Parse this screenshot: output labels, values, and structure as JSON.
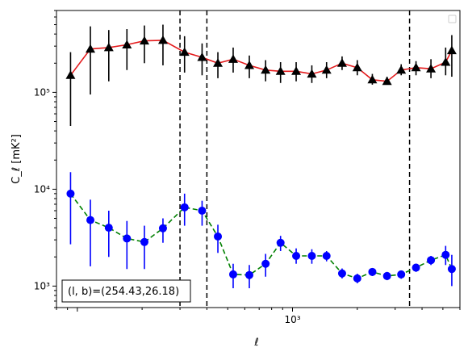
{
  "chart_data": {
    "type": "scatter",
    "title": "",
    "xlabel": "ℓ",
    "ylabel": "C_ℓ [mK²]",
    "xscale": "log",
    "yscale": "log",
    "xlim": [
      80,
      6000
    ],
    "ylim": [
      600,
      700000
    ],
    "x_tick_labels": [
      {
        "value": 1000,
        "label": "10³"
      }
    ],
    "y_tick_labels": [
      {
        "value": 1000,
        "label": "10³"
      },
      {
        "value": 10000,
        "label": "10⁴"
      },
      {
        "value": 100000,
        "label": "10⁵"
      }
    ],
    "legend": "upper right, empty",
    "vertical_lines_x": [
      300,
      400,
      3500
    ],
    "annotation": "(l, b)=(254.43,26.18)",
    "series": [
      {
        "marker": "triangle",
        "marker_color": "#000000",
        "line_color": "#e41a1c",
        "line_style": "solid",
        "errorbar_color": "#000000",
        "points": [
          {
            "x": 93,
            "y": 150000,
            "lo": 45000,
            "hi": 260000
          },
          {
            "x": 115,
            "y": 280000,
            "lo": 95000,
            "hi": 480000
          },
          {
            "x": 140,
            "y": 290000,
            "lo": 130000,
            "hi": 440000
          },
          {
            "x": 170,
            "y": 310000,
            "lo": 170000,
            "hi": 450000
          },
          {
            "x": 205,
            "y": 340000,
            "lo": 200000,
            "hi": 490000
          },
          {
            "x": 250,
            "y": 345000,
            "lo": 190000,
            "hi": 500000
          },
          {
            "x": 315,
            "y": 260000,
            "lo": 160000,
            "hi": 380000
          },
          {
            "x": 380,
            "y": 230000,
            "lo": 150000,
            "hi": 320000
          },
          {
            "x": 450,
            "y": 200000,
            "lo": 140000,
            "hi": 260000
          },
          {
            "x": 530,
            "y": 220000,
            "lo": 160000,
            "hi": 290000
          },
          {
            "x": 630,
            "y": 190000,
            "lo": 140000,
            "hi": 240000
          },
          {
            "x": 750,
            "y": 170000,
            "lo": 130000,
            "hi": 215000
          },
          {
            "x": 880,
            "y": 165000,
            "lo": 125000,
            "hi": 205000
          },
          {
            "x": 1040,
            "y": 165000,
            "lo": 130000,
            "hi": 205000
          },
          {
            "x": 1230,
            "y": 155000,
            "lo": 125000,
            "hi": 190000
          },
          {
            "x": 1440,
            "y": 170000,
            "lo": 140000,
            "hi": 205000
          },
          {
            "x": 1700,
            "y": 200000,
            "lo": 170000,
            "hi": 235000
          },
          {
            "x": 2000,
            "y": 180000,
            "lo": 150000,
            "hi": 215000
          },
          {
            "x": 2350,
            "y": 135000,
            "lo": 120000,
            "hi": 155000
          },
          {
            "x": 2750,
            "y": 130000,
            "lo": 120000,
            "hi": 145000
          },
          {
            "x": 3200,
            "y": 170000,
            "lo": 150000,
            "hi": 195000
          },
          {
            "x": 3750,
            "y": 180000,
            "lo": 150000,
            "hi": 210000
          },
          {
            "x": 4400,
            "y": 175000,
            "lo": 140000,
            "hi": 220000
          },
          {
            "x": 5150,
            "y": 205000,
            "lo": 150000,
            "hi": 290000
          },
          {
            "x": 5500,
            "y": 270000,
            "lo": 145000,
            "hi": 390000
          }
        ]
      },
      {
        "marker": "circle",
        "marker_color": "#0000ff",
        "line_color": "#008000",
        "line_style": "dashed",
        "errorbar_color": "#0000ff",
        "points": [
          {
            "x": 93,
            "y": 9000,
            "lo": 2700,
            "hi": 15000
          },
          {
            "x": 115,
            "y": 4800,
            "lo": 1600,
            "hi": 7800
          },
          {
            "x": 140,
            "y": 4000,
            "lo": 2000,
            "hi": 6000
          },
          {
            "x": 170,
            "y": 3100,
            "lo": 1500,
            "hi": 4700
          },
          {
            "x": 205,
            "y": 2850,
            "lo": 1500,
            "hi": 4200
          },
          {
            "x": 250,
            "y": 3950,
            "lo": 2800,
            "hi": 5000
          },
          {
            "x": 315,
            "y": 6500,
            "lo": 4200,
            "hi": 9000
          },
          {
            "x": 380,
            "y": 6000,
            "lo": 4200,
            "hi": 7600
          },
          {
            "x": 450,
            "y": 3250,
            "lo": 2200,
            "hi": 4300
          },
          {
            "x": 530,
            "y": 1320,
            "lo": 950,
            "hi": 1700
          },
          {
            "x": 630,
            "y": 1300,
            "lo": 950,
            "hi": 1650
          },
          {
            "x": 750,
            "y": 1700,
            "lo": 1250,
            "hi": 2150
          },
          {
            "x": 880,
            "y": 2800,
            "lo": 2300,
            "hi": 3300
          },
          {
            "x": 1040,
            "y": 2050,
            "lo": 1700,
            "hi": 2450
          },
          {
            "x": 1230,
            "y": 2050,
            "lo": 1700,
            "hi": 2400
          },
          {
            "x": 1440,
            "y": 2050,
            "lo": 1800,
            "hi": 2300
          },
          {
            "x": 1700,
            "y": 1350,
            "lo": 1200,
            "hi": 1520
          },
          {
            "x": 2000,
            "y": 1200,
            "lo": 1070,
            "hi": 1340
          },
          {
            "x": 2350,
            "y": 1400,
            "lo": 1270,
            "hi": 1530
          },
          {
            "x": 2750,
            "y": 1270,
            "lo": 1150,
            "hi": 1400
          },
          {
            "x": 3200,
            "y": 1320,
            "lo": 1190,
            "hi": 1450
          },
          {
            "x": 3750,
            "y": 1550,
            "lo": 1400,
            "hi": 1700
          },
          {
            "x": 4400,
            "y": 1850,
            "lo": 1650,
            "hi": 2050
          },
          {
            "x": 5150,
            "y": 2100,
            "lo": 1650,
            "hi": 2600
          },
          {
            "x": 5500,
            "y": 1500,
            "lo": 1000,
            "hi": 2100
          }
        ]
      }
    ]
  }
}
